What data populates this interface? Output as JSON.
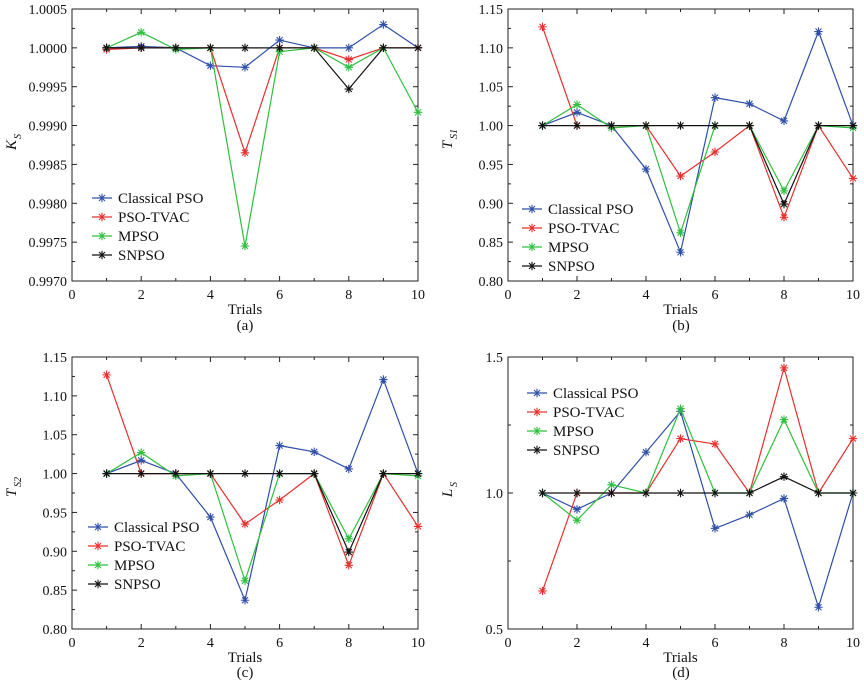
{
  "chart_data": [
    {
      "type": "line",
      "panel_label": "(a)",
      "xlabel": "Trials",
      "ylabel": "K",
      "ylabel_sub": "S",
      "xlim": [
        0,
        10
      ],
      "ylim": [
        0.997,
        1.0005
      ],
      "xticks": [
        0,
        2,
        4,
        6,
        8,
        10
      ],
      "yticks": [
        0.997,
        0.9975,
        0.998,
        0.9985,
        0.999,
        0.9995,
        1.0,
        1.0005
      ],
      "ytick_labels": [
        "0.9970",
        "0.9975",
        "0.9980",
        "0.9985",
        "0.9990",
        "0.9995",
        "1.0000",
        "1.0005"
      ],
      "legend_position": "bottom-left",
      "x": [
        1,
        2,
        3,
        4,
        5,
        6,
        7,
        8,
        9,
        10
      ],
      "series": [
        {
          "name": "Classical PSO",
          "color": "#2f4fa8",
          "values": [
            1.0,
            1.00002,
            1.0,
            0.99977,
            0.99975,
            1.0001,
            1.0,
            1.0,
            1.0003,
            1.0
          ]
        },
        {
          "name": "PSO-TVAC",
          "color": "#e8302e",
          "values": [
            0.99998,
            1.0,
            1.0,
            1.0,
            0.99865,
            1.0,
            1.0,
            0.99985,
            1.0,
            1.0
          ]
        },
        {
          "name": "MPSO",
          "color": "#2fbf3f",
          "values": [
            1.0,
            1.0002,
            0.99998,
            1.0,
            0.99745,
            0.99995,
            1.0,
            0.99975,
            1.0,
            0.99917
          ]
        },
        {
          "name": "SNPSO",
          "color": "#111111",
          "values": [
            1.0,
            1.0,
            1.0,
            1.0,
            1.0,
            1.0,
            1.0,
            0.99947,
            1.0,
            1.0
          ]
        }
      ]
    },
    {
      "type": "line",
      "panel_label": "(b)",
      "xlabel": "Trials",
      "ylabel": "T",
      "ylabel_sub": "S1",
      "xlim": [
        0,
        10
      ],
      "ylim": [
        0.8,
        1.15
      ],
      "xticks": [
        0,
        2,
        4,
        6,
        8,
        10
      ],
      "yticks": [
        0.8,
        0.85,
        0.9,
        0.95,
        1.0,
        1.05,
        1.1,
        1.15
      ],
      "ytick_labels": [
        "0.80",
        "0.85",
        "0.90",
        "0.95",
        "1.00",
        "1.05",
        "1.10",
        "1.15"
      ],
      "legend_position": "bottom-left",
      "x": [
        1,
        2,
        3,
        4,
        5,
        6,
        7,
        8,
        9,
        10
      ],
      "series": [
        {
          "name": "Classical PSO",
          "color": "#2f4fa8",
          "values": [
            1.0,
            1.017,
            1.0,
            0.944,
            0.837,
            1.036,
            1.028,
            1.006,
            1.121,
            1.0
          ]
        },
        {
          "name": "PSO-TVAC",
          "color": "#e8302e",
          "values": [
            1.127,
            1.0,
            1.0,
            1.0,
            0.935,
            0.966,
            1.0,
            0.882,
            1.0,
            0.932
          ]
        },
        {
          "name": "MPSO",
          "color": "#2fbf3f",
          "values": [
            1.0,
            1.027,
            0.997,
            1.0,
            0.862,
            1.0,
            1.0,
            0.916,
            1.0,
            0.997
          ]
        },
        {
          "name": "SNPSO",
          "color": "#111111",
          "values": [
            1.0,
            1.0,
            1.0,
            1.0,
            1.0,
            1.0,
            1.0,
            0.899,
            1.0,
            1.0
          ]
        }
      ]
    },
    {
      "type": "line",
      "panel_label": "(c)",
      "xlabel": "Trials",
      "ylabel": "T",
      "ylabel_sub": "S2",
      "xlim": [
        0,
        10
      ],
      "ylim": [
        0.8,
        1.15
      ],
      "xticks": [
        0,
        2,
        4,
        6,
        8,
        10
      ],
      "yticks": [
        0.8,
        0.85,
        0.9,
        0.95,
        1.0,
        1.05,
        1.1,
        1.15
      ],
      "ytick_labels": [
        "0.80",
        "0.85",
        "0.90",
        "0.95",
        "1.00",
        "1.05",
        "1.10",
        "1.15"
      ],
      "legend_position": "bottom-left",
      "x": [
        1,
        2,
        3,
        4,
        5,
        6,
        7,
        8,
        9,
        10
      ],
      "series": [
        {
          "name": "Classical PSO",
          "color": "#2f4fa8",
          "values": [
            1.0,
            1.017,
            1.0,
            0.944,
            0.837,
            1.036,
            1.028,
            1.006,
            1.121,
            1.0
          ]
        },
        {
          "name": "PSO-TVAC",
          "color": "#e8302e",
          "values": [
            1.127,
            1.0,
            1.0,
            1.0,
            0.935,
            0.966,
            1.0,
            0.882,
            1.0,
            0.932
          ]
        },
        {
          "name": "MPSO",
          "color": "#2fbf3f",
          "values": [
            1.0,
            1.027,
            0.997,
            1.0,
            0.862,
            1.0,
            1.0,
            0.916,
            1.0,
            0.997
          ]
        },
        {
          "name": "SNPSO",
          "color": "#111111",
          "values": [
            1.0,
            1.0,
            1.0,
            1.0,
            1.0,
            1.0,
            1.0,
            0.899,
            1.0,
            1.0
          ]
        }
      ]
    },
    {
      "type": "line",
      "panel_label": "(d)",
      "xlabel": "Trials",
      "ylabel": "L",
      "ylabel_sub": "S",
      "xlim": [
        0,
        10
      ],
      "ylim": [
        0.5,
        1.5
      ],
      "xticks": [
        0,
        2,
        4,
        6,
        8,
        10
      ],
      "yticks": [
        0.5,
        1.0,
        1.5
      ],
      "ytick_labels": [
        "0.5",
        "1.0",
        "1.5"
      ],
      "legend_position": "top-left",
      "x": [
        1,
        2,
        3,
        4,
        5,
        6,
        7,
        8,
        9,
        10
      ],
      "series": [
        {
          "name": "Classical PSO",
          "color": "#2f4fa8",
          "values": [
            1.0,
            0.94,
            1.0,
            1.15,
            1.3,
            0.87,
            0.92,
            0.98,
            0.58,
            1.0
          ]
        },
        {
          "name": "PSO-TVAC",
          "color": "#e8302e",
          "values": [
            0.64,
            1.0,
            1.0,
            1.0,
            1.2,
            1.18,
            1.0,
            1.46,
            1.0,
            1.2
          ]
        },
        {
          "name": "MPSO",
          "color": "#2fbf3f",
          "values": [
            1.0,
            0.9,
            1.03,
            1.0,
            1.31,
            1.0,
            1.0,
            1.27,
            1.0,
            1.0
          ]
        },
        {
          "name": "SNPSO",
          "color": "#111111",
          "values": [
            1.0,
            1.0,
            1.0,
            1.0,
            1.0,
            1.0,
            1.0,
            1.06,
            1.0,
            1.0
          ]
        }
      ]
    }
  ]
}
